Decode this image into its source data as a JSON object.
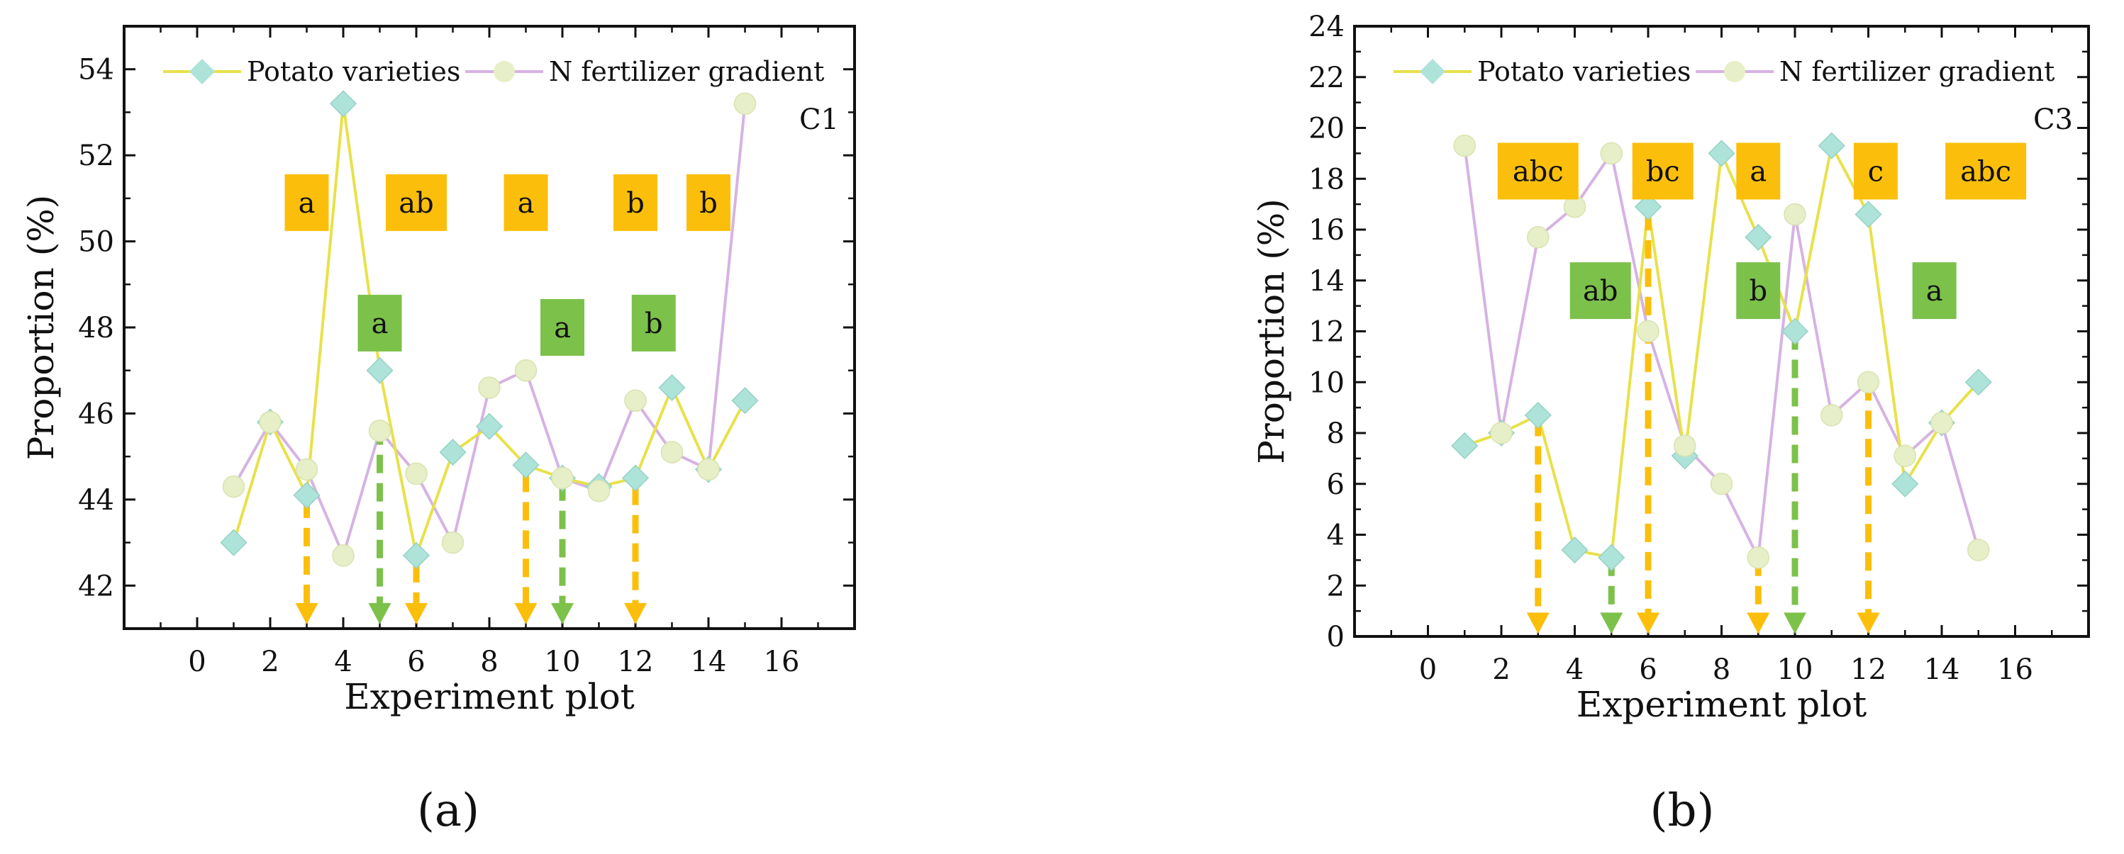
{
  "chart_data": [
    {
      "type": "line",
      "panel_label": "C1",
      "caption": "(a)",
      "xlabel": "Experiment plot",
      "ylabel": "Proportion (%)",
      "xlim": [
        -2,
        18
      ],
      "ylim": [
        41,
        55
      ],
      "xticks": [
        0,
        2,
        4,
        6,
        8,
        10,
        12,
        14,
        16
      ],
      "yticks": [
        42,
        44,
        46,
        48,
        50,
        52,
        54
      ],
      "grid": false,
      "legend_position": "top",
      "series": [
        {
          "name": "Potato varieties",
          "color": "#e8e14a",
          "marker": "diamond",
          "marker_color": "#aee3d9",
          "x": [
            1,
            2,
            3,
            4,
            5,
            6,
            7,
            8,
            9,
            10,
            11,
            12,
            13,
            14,
            15
          ],
          "y": [
            43.0,
            45.8,
            44.1,
            53.2,
            47.0,
            42.7,
            45.1,
            45.7,
            44.8,
            44.5,
            44.3,
            44.5,
            46.6,
            44.7,
            46.3
          ]
        },
        {
          "name": "N fertilizer gradient",
          "color": "#d6b3e3",
          "marker": "circle",
          "marker_color": "#e7efc8",
          "x": [
            1,
            2,
            3,
            4,
            5,
            6,
            7,
            8,
            9,
            10,
            11,
            12,
            13,
            14,
            15
          ],
          "y": [
            44.3,
            45.8,
            44.7,
            42.7,
            45.6,
            44.6,
            43.0,
            46.6,
            47.0,
            44.5,
            44.2,
            46.3,
            45.1,
            44.7,
            53.2
          ]
        }
      ],
      "letter_boxes": [
        {
          "text": "a",
          "color": "#fbbf0b",
          "x": 3,
          "y": 50.9
        },
        {
          "text": "ab",
          "color": "#fbbf0b",
          "x": 6,
          "y": 50.9
        },
        {
          "text": "a",
          "color": "#fbbf0b",
          "x": 9,
          "y": 50.9
        },
        {
          "text": "b",
          "color": "#fbbf0b",
          "x": 12,
          "y": 50.9
        },
        {
          "text": "b",
          "color": "#fbbf0b",
          "x": 14,
          "y": 50.9
        },
        {
          "text": "a",
          "color": "#7cc14a",
          "x": 5,
          "y": 48.1
        },
        {
          "text": "a",
          "color": "#7cc14a",
          "x": 10,
          "y": 48.0
        },
        {
          "text": "b",
          "color": "#7cc14a",
          "x": 12.5,
          "y": 48.1
        }
      ],
      "arrows": [
        {
          "x": 3,
          "y_from": 44.0,
          "y_to": 41.1,
          "color": "#fbbf0b"
        },
        {
          "x": 5,
          "y_from": 45.7,
          "y_to": 41.1,
          "color": "#7cc14a"
        },
        {
          "x": 6,
          "y_from": 42.5,
          "y_to": 41.1,
          "color": "#fbbf0b"
        },
        {
          "x": 9,
          "y_from": 44.6,
          "y_to": 41.1,
          "color": "#fbbf0b"
        },
        {
          "x": 10,
          "y_from": 44.4,
          "y_to": 41.1,
          "color": "#7cc14a"
        },
        {
          "x": 12,
          "y_from": 44.3,
          "y_to": 41.1,
          "color": "#fbbf0b"
        }
      ]
    },
    {
      "type": "line",
      "panel_label": "C3",
      "caption": "(b)",
      "xlabel": "Experiment plot",
      "ylabel": "Proportion (%)",
      "xlim": [
        -2,
        18
      ],
      "ylim": [
        0,
        24
      ],
      "xticks": [
        0,
        2,
        4,
        6,
        8,
        10,
        12,
        14,
        16
      ],
      "yticks": [
        0,
        2,
        4,
        6,
        8,
        10,
        12,
        14,
        16,
        18,
        20,
        22,
        24
      ],
      "grid": false,
      "legend_position": "top",
      "series": [
        {
          "name": "Potato varieties",
          "color": "#e8e14a",
          "marker": "diamond",
          "marker_color": "#aee3d9",
          "x": [
            1,
            2,
            3,
            4,
            5,
            6,
            7,
            8,
            9,
            10,
            11,
            12,
            13,
            14,
            15
          ],
          "y": [
            7.5,
            8.0,
            8.7,
            3.4,
            3.1,
            16.9,
            7.1,
            19.0,
            15.7,
            12.0,
            19.3,
            16.6,
            6.0,
            8.4,
            10.0
          ]
        },
        {
          "name": "N fertilizer gradient",
          "color": "#d6b3e3",
          "marker": "circle",
          "marker_color": "#e7efc8",
          "x": [
            1,
            2,
            3,
            4,
            5,
            6,
            7,
            8,
            9,
            10,
            11,
            12,
            13,
            14,
            15
          ],
          "y": [
            19.3,
            8.0,
            15.7,
            16.9,
            19.0,
            12.0,
            7.5,
            6.0,
            3.1,
            16.6,
            8.7,
            10.0,
            7.1,
            8.4,
            3.4
          ]
        }
      ],
      "letter_boxes": [
        {
          "text": "abc",
          "color": "#fbbf0b",
          "x": 3,
          "y": 18.3
        },
        {
          "text": "bc",
          "color": "#fbbf0b",
          "x": 6.4,
          "y": 18.3
        },
        {
          "text": "a",
          "color": "#fbbf0b",
          "x": 9,
          "y": 18.3
        },
        {
          "text": "c",
          "color": "#fbbf0b",
          "x": 12.2,
          "y": 18.3
        },
        {
          "text": "abc",
          "color": "#fbbf0b",
          "x": 15.2,
          "y": 18.3
        },
        {
          "text": "ab",
          "color": "#7cc14a",
          "x": 4.7,
          "y": 13.6
        },
        {
          "text": "b",
          "color": "#7cc14a",
          "x": 9,
          "y": 13.6
        },
        {
          "text": "a",
          "color": "#7cc14a",
          "x": 13.8,
          "y": 13.6
        }
      ],
      "arrows": [
        {
          "x": 3,
          "y_from": 8.6,
          "y_to": 0.1,
          "color": "#fbbf0b"
        },
        {
          "x": 5,
          "y_from": 3.1,
          "y_to": 0.1,
          "color": "#7cc14a"
        },
        {
          "x": 6,
          "y_from": 16.7,
          "y_to": 0.1,
          "color": "#fbbf0b"
        },
        {
          "x": 9,
          "y_from": 3.1,
          "y_to": 0.1,
          "color": "#fbbf0b"
        },
        {
          "x": 10,
          "y_from": 12.0,
          "y_to": 0.1,
          "color": "#7cc14a"
        },
        {
          "x": 12,
          "y_from": 10.0,
          "y_to": 0.1,
          "color": "#fbbf0b"
        }
      ]
    }
  ]
}
